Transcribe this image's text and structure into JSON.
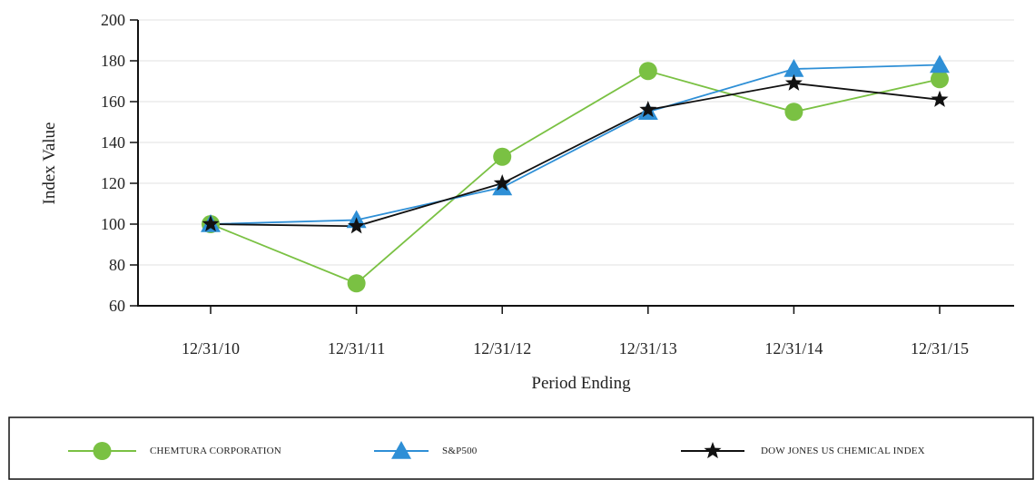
{
  "chart_data": {
    "type": "line",
    "categories": [
      "12/31/10",
      "12/31/11",
      "12/31/12",
      "12/31/13",
      "12/31/14",
      "12/31/15"
    ],
    "xlabel": "Period Ending",
    "ylabel": "Index Value",
    "ylim": [
      60,
      200
    ],
    "yticks": [
      60,
      80,
      100,
      120,
      140,
      160,
      180,
      200
    ],
    "grid": true,
    "legend_position": "bottom",
    "series": [
      {
        "name": "CHEMTURA CORPORATION",
        "marker": "circle",
        "color": "#7ac143",
        "values": [
          100,
          71,
          133,
          175,
          155,
          171
        ]
      },
      {
        "name": "S&P500",
        "marker": "triangle",
        "color": "#2e8fd6",
        "values": [
          100,
          102,
          118,
          155,
          176,
          178
        ]
      },
      {
        "name": "DOW JONES US CHEMICAL INDEX",
        "marker": "star",
        "color": "#111111",
        "values": [
          100,
          99,
          120,
          156,
          169,
          161
        ]
      }
    ]
  }
}
